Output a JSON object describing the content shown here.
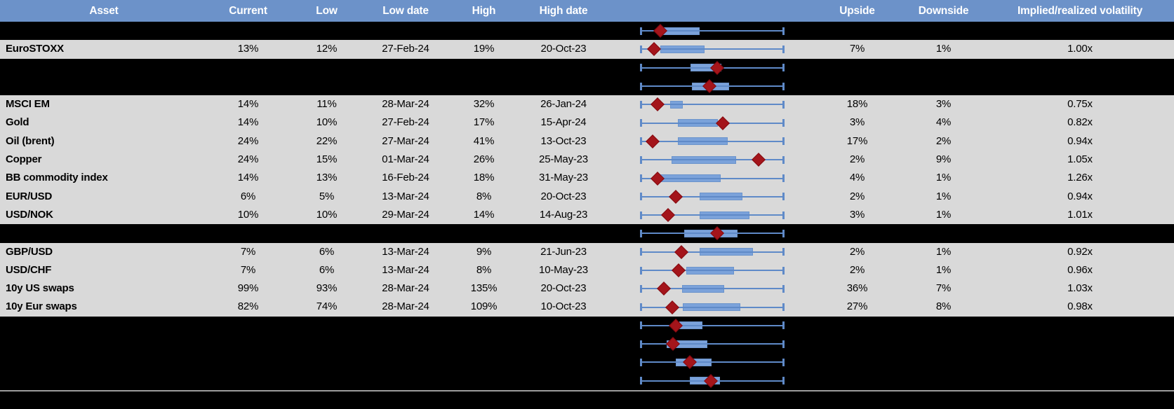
{
  "colors": {
    "header_bg": "#6c92c9",
    "row_bg": "#d9d9d9",
    "page_bg": "#000000",
    "box_fill": "#7ba2da",
    "box_border": "#6b94cc",
    "whisker": "#5f8ac8",
    "diamond": "#a4151b",
    "diamond_border": "#83090f",
    "divider": "#9d9d9d",
    "header_text": "#ffffff"
  },
  "chart_data": {
    "type": "table",
    "columns": [
      "Asset",
      "Current",
      "Low",
      "Low date",
      "High",
      "High date",
      "Upside",
      "Downside",
      "Implied/realized volatility"
    ],
    "box_note": "Each row carries a horizontal box-whisker range plot: whiskers span the low-to-high implied volatility range (normalized 0-1), the blue box marks the interquartile band, and the dark-red diamond marks the current level. Rows of kind 'hidden' are black spacer rows that still show a range plot but no text values.",
    "box_x_range": [
      0,
      1
    ],
    "rows": [
      {
        "kind": "hidden",
        "box": {
          "whisker_lo": 0,
          "whisker_hi": 1,
          "q1": 0.157,
          "q3": 0.412,
          "marker": 0.137
        }
      },
      {
        "kind": "data",
        "asset": "EuroSTOXX",
        "current": "13%",
        "low": "12%",
        "low_date": "27-Feb-24",
        "high": "19%",
        "high_date": "20-Oct-23",
        "upside": "7%",
        "downside": "1%",
        "implied": "1.00x",
        "box": {
          "whisker_lo": 0,
          "whisker_hi": 1,
          "q1": 0.137,
          "q3": 0.446,
          "marker": 0.093
        }
      },
      {
        "kind": "hidden",
        "box": {
          "whisker_lo": 0,
          "whisker_hi": 1,
          "q1": 0.348,
          "q3": 0.564,
          "marker": 0.534
        }
      },
      {
        "kind": "hidden",
        "box": {
          "whisker_lo": 0,
          "whisker_hi": 1,
          "q1": 0.358,
          "q3": 0.618,
          "marker": 0.48
        }
      },
      {
        "kind": "data",
        "asset": "MSCI EM",
        "current": "14%",
        "low": "11%",
        "low_date": "28-Mar-24",
        "high": "32%",
        "high_date": "26-Jan-24",
        "upside": "18%",
        "downside": "3%",
        "implied": "0.75x",
        "box": {
          "whisker_lo": 0,
          "whisker_hi": 1,
          "q1": 0.206,
          "q3": 0.294,
          "marker": 0.118
        }
      },
      {
        "kind": "data",
        "asset": "Gold",
        "current": "14%",
        "low": "10%",
        "low_date": "27-Feb-24",
        "high": "17%",
        "high_date": "15-Apr-24",
        "upside": "3%",
        "downside": "4%",
        "implied": "0.82x",
        "box": {
          "whisker_lo": 0,
          "whisker_hi": 1,
          "q1": 0.26,
          "q3": 0.539,
          "marker": 0.574
        }
      },
      {
        "kind": "data",
        "asset": "Oil (brent)",
        "current": "24%",
        "low": "22%",
        "low_date": "27-Mar-24",
        "high": "41%",
        "high_date": "13-Oct-23",
        "upside": "17%",
        "downside": "2%",
        "implied": "0.94x",
        "box": {
          "whisker_lo": 0,
          "whisker_hi": 1,
          "q1": 0.26,
          "q3": 0.608,
          "marker": 0.083
        }
      },
      {
        "kind": "data",
        "asset": "Copper",
        "current": "24%",
        "low": "15%",
        "low_date": "01-Mar-24",
        "high": "26%",
        "high_date": "25-May-23",
        "upside": "2%",
        "downside": "9%",
        "implied": "1.05x",
        "box": {
          "whisker_lo": 0,
          "whisker_hi": 1,
          "q1": 0.216,
          "q3": 0.667,
          "marker": 0.824
        }
      },
      {
        "kind": "data",
        "asset": "BB commodity index",
        "current": "14%",
        "low": "13%",
        "low_date": "16-Feb-24",
        "high": "18%",
        "high_date": "31-May-23",
        "upside": "4%",
        "downside": "1%",
        "implied": "1.26x",
        "box": {
          "whisker_lo": 0,
          "whisker_hi": 1,
          "q1": 0.132,
          "q3": 0.559,
          "marker": 0.118
        }
      },
      {
        "kind": "data",
        "asset": "EUR/USD",
        "current": "6%",
        "low": "5%",
        "low_date": "13-Mar-24",
        "high": "8%",
        "high_date": "20-Oct-23",
        "upside": "2%",
        "downside": "1%",
        "implied": "0.94x",
        "box": {
          "whisker_lo": 0,
          "whisker_hi": 1,
          "q1": 0.412,
          "q3": 0.711,
          "marker": 0.245
        }
      },
      {
        "kind": "data",
        "asset": "USD/NOK",
        "current": "10%",
        "low": "10%",
        "low_date": "29-Mar-24",
        "high": "14%",
        "high_date": "14-Aug-23",
        "upside": "3%",
        "downside": "1%",
        "implied": "1.01x",
        "box": {
          "whisker_lo": 0,
          "whisker_hi": 1,
          "q1": 0.412,
          "q3": 0.76,
          "marker": 0.191
        }
      },
      {
        "kind": "hidden",
        "box": {
          "whisker_lo": 0,
          "whisker_hi": 1,
          "q1": 0.304,
          "q3": 0.677,
          "marker": 0.534
        }
      },
      {
        "kind": "data",
        "asset": "GBP/USD",
        "current": "7%",
        "low": "6%",
        "low_date": "13-Mar-24",
        "high": "9%",
        "high_date": "21-Jun-23",
        "upside": "2%",
        "downside": "1%",
        "implied": "0.92x",
        "box": {
          "whisker_lo": 0,
          "whisker_hi": 1,
          "q1": 0.412,
          "q3": 0.784,
          "marker": 0.284
        }
      },
      {
        "kind": "data",
        "asset": "USD/CHF",
        "current": "7%",
        "low": "6%",
        "low_date": "13-Mar-24",
        "high": "8%",
        "high_date": "10-May-23",
        "upside": "2%",
        "downside": "1%",
        "implied": "0.96x",
        "box": {
          "whisker_lo": 0,
          "whisker_hi": 1,
          "q1": 0.319,
          "q3": 0.652,
          "marker": 0.265
        }
      },
      {
        "kind": "data",
        "asset": "10y US swaps",
        "current": "99%",
        "low": "93%",
        "low_date": "28-Mar-24",
        "high": "135%",
        "high_date": "20-Oct-23",
        "upside": "36%",
        "downside": "7%",
        "implied": "1.03x",
        "box": {
          "whisker_lo": 0,
          "whisker_hi": 1,
          "q1": 0.289,
          "q3": 0.583,
          "marker": 0.162
        }
      },
      {
        "kind": "data",
        "asset": "10y Eur swaps",
        "current": "82%",
        "low": "74%",
        "low_date": "28-Mar-24",
        "high": "109%",
        "high_date": "10-Oct-23",
        "upside": "27%",
        "downside": "8%",
        "implied": "0.98x",
        "box": {
          "whisker_lo": 0,
          "whisker_hi": 1,
          "q1": 0.294,
          "q3": 0.696,
          "marker": 0.221
        }
      },
      {
        "kind": "hidden",
        "box": {
          "whisker_lo": 0,
          "whisker_hi": 1,
          "q1": 0.27,
          "q3": 0.431,
          "marker": 0.245
        }
      },
      {
        "kind": "hidden",
        "box": {
          "whisker_lo": 0,
          "whisker_hi": 1,
          "q1": 0.181,
          "q3": 0.466,
          "marker": 0.225
        }
      },
      {
        "kind": "hidden",
        "box": {
          "whisker_lo": 0,
          "whisker_hi": 1,
          "q1": 0.245,
          "q3": 0.495,
          "marker": 0.343
        }
      },
      {
        "kind": "hidden",
        "box": {
          "whisker_lo": 0,
          "whisker_hi": 1,
          "q1": 0.343,
          "q3": 0.554,
          "marker": 0.49
        }
      }
    ]
  }
}
